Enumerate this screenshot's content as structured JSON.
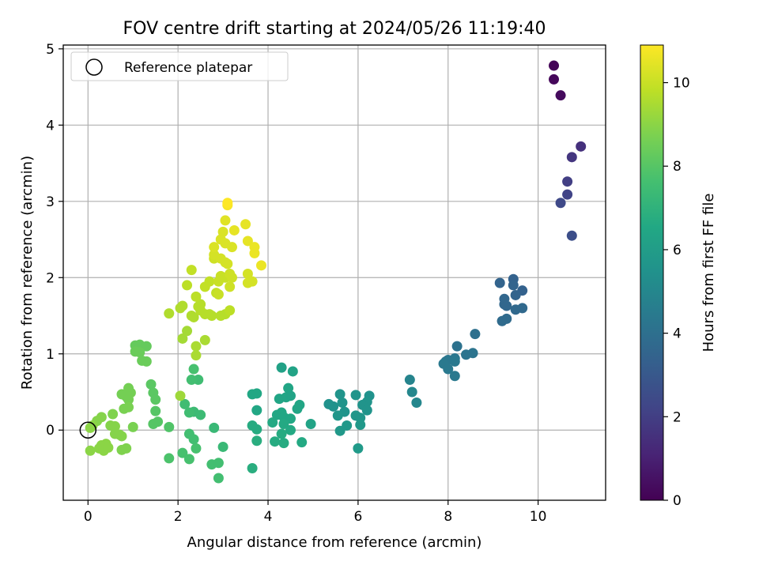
{
  "chart_data": {
    "type": "scatter",
    "title": "FOV centre drift starting at 2024/05/26 11:19:40",
    "xlabel": "Angular distance from reference (arcmin)",
    "ylabel": "Rotation from reference (arcmin)",
    "xlim": [
      -0.55,
      11.5
    ],
    "ylim": [
      -0.92,
      5.05
    ],
    "xticks": [
      0,
      2,
      4,
      6,
      8,
      10
    ],
    "xtick_labels": [
      "0",
      "2",
      "4",
      "6",
      "8",
      "10"
    ],
    "yticks": [
      0,
      1,
      2,
      3,
      4,
      5
    ],
    "ytick_labels": [
      "0",
      "1",
      "2",
      "3",
      "4",
      "5"
    ],
    "grid": true,
    "legend": {
      "position": "top-left",
      "entries": [
        "Reference platepar"
      ]
    },
    "reference_point": {
      "x": 0,
      "y": 0
    },
    "colorbar": {
      "label": "Hours from first FF file",
      "min": 0,
      "max": 10.9,
      "ticks": [
        0,
        2,
        4,
        6,
        8,
        10
      ],
      "tick_labels": [
        "0",
        "2",
        "4",
        "6",
        "8",
        "10"
      ],
      "colormap": "viridis"
    },
    "points": [
      [
        10.35,
        4.78,
        0.1
      ],
      [
        10.35,
        4.6,
        0.2
      ],
      [
        10.5,
        4.39,
        0.3
      ],
      [
        10.95,
        3.72,
        1.5
      ],
      [
        10.75,
        3.58,
        1.7
      ],
      [
        10.65,
        3.26,
        2.0
      ],
      [
        10.65,
        3.09,
        2.2
      ],
      [
        10.5,
        2.98,
        2.4
      ],
      [
        10.75,
        2.55,
        2.6
      ],
      [
        9.45,
        1.98,
        3.4
      ],
      [
        9.15,
        1.93,
        3.5
      ],
      [
        9.45,
        1.9,
        3.5
      ],
      [
        9.65,
        1.83,
        3.4
      ],
      [
        9.5,
        1.77,
        3.5
      ],
      [
        9.25,
        1.72,
        3.6
      ],
      [
        9.25,
        1.65,
        3.6
      ],
      [
        9.3,
        1.63,
        3.6
      ],
      [
        9.65,
        1.6,
        3.7
      ],
      [
        9.5,
        1.58,
        3.7
      ],
      [
        9.3,
        1.46,
        3.8
      ],
      [
        9.2,
        1.43,
        3.8
      ],
      [
        8.6,
        1.26,
        4.0
      ],
      [
        8.2,
        1.1,
        4.1
      ],
      [
        8.55,
        1.01,
        4.2
      ],
      [
        8.4,
        0.99,
        4.2
      ],
      [
        8.15,
        0.94,
        4.3
      ],
      [
        7.95,
        0.9,
        4.3
      ],
      [
        8.0,
        0.92,
        4.3
      ],
      [
        8.15,
        0.9,
        4.4
      ],
      [
        7.9,
        0.87,
        4.4
      ],
      [
        8.0,
        0.8,
        4.4
      ],
      [
        8.15,
        0.71,
        4.4
      ],
      [
        7.15,
        0.66,
        4.9
      ],
      [
        7.2,
        0.5,
        5.0
      ],
      [
        7.3,
        0.36,
        5.0
      ],
      [
        5.35,
        0.34,
        5.5
      ],
      [
        5.45,
        0.31,
        5.5
      ],
      [
        5.6,
        0.47,
        5.6
      ],
      [
        5.65,
        0.36,
        5.6
      ],
      [
        5.7,
        0.24,
        5.6
      ],
      [
        5.55,
        0.19,
        5.7
      ],
      [
        5.95,
        0.46,
        5.6
      ],
      [
        6.25,
        0.45,
        5.5
      ],
      [
        6.2,
        0.37,
        5.6
      ],
      [
        6.1,
        0.33,
        5.6
      ],
      [
        6.2,
        0.26,
        5.6
      ],
      [
        5.95,
        0.19,
        5.7
      ],
      [
        6.05,
        0.16,
        5.7
      ],
      [
        6.05,
        0.07,
        5.8
      ],
      [
        5.75,
        0.06,
        5.8
      ],
      [
        5.6,
        -0.01,
        5.8
      ],
      [
        6.0,
        -0.24,
        5.9
      ],
      [
        4.3,
        0.82,
        6.2
      ],
      [
        4.55,
        0.77,
        6.3
      ],
      [
        3.65,
        0.47,
        6.5
      ],
      [
        3.75,
        0.48,
        6.5
      ],
      [
        4.45,
        0.55,
        6.4
      ],
      [
        4.25,
        0.41,
        6.4
      ],
      [
        4.4,
        0.43,
        6.4
      ],
      [
        4.5,
        0.45,
        6.3
      ],
      [
        4.7,
        0.33,
        6.4
      ],
      [
        4.65,
        0.28,
        6.4
      ],
      [
        3.75,
        0.26,
        6.5
      ],
      [
        4.3,
        0.23,
        6.5
      ],
      [
        4.2,
        0.2,
        6.5
      ],
      [
        4.35,
        0.17,
        6.5
      ],
      [
        4.5,
        0.15,
        6.5
      ],
      [
        4.1,
        0.1,
        6.6
      ],
      [
        4.35,
        0.08,
        6.6
      ],
      [
        4.95,
        0.08,
        6.3
      ],
      [
        3.65,
        0.06,
        6.7
      ],
      [
        3.75,
        0.01,
        6.7
      ],
      [
        4.5,
        0.0,
        6.6
      ],
      [
        4.3,
        -0.05,
        6.7
      ],
      [
        3.75,
        -0.14,
        6.8
      ],
      [
        4.15,
        -0.15,
        6.7
      ],
      [
        4.35,
        -0.17,
        6.7
      ],
      [
        4.75,
        -0.16,
        6.6
      ],
      [
        3.65,
        -0.5,
        6.8
      ],
      [
        2.8,
        0.03,
        7.3
      ],
      [
        3.0,
        -0.22,
        7.3
      ],
      [
        2.35,
        0.24,
        7.4
      ],
      [
        2.15,
        0.34,
        7.5
      ],
      [
        2.25,
        0.23,
        7.5
      ],
      [
        2.5,
        0.2,
        7.4
      ],
      [
        2.45,
        0.66,
        7.5
      ],
      [
        2.3,
        0.66,
        7.6
      ],
      [
        2.35,
        0.8,
        7.7
      ],
      [
        2.25,
        -0.05,
        7.6
      ],
      [
        2.35,
        -0.12,
        7.6
      ],
      [
        2.4,
        -0.24,
        7.7
      ],
      [
        2.1,
        -0.3,
        7.7
      ],
      [
        2.25,
        -0.38,
        7.7
      ],
      [
        2.75,
        -0.45,
        7.6
      ],
      [
        2.9,
        -0.43,
        7.6
      ],
      [
        2.9,
        -0.63,
        7.6
      ],
      [
        1.8,
        -0.37,
        7.8
      ],
      [
        1.8,
        0.04,
        7.9
      ],
      [
        1.55,
        0.11,
        8.0
      ],
      [
        1.45,
        0.08,
        8.0
      ],
      [
        1.5,
        0.25,
        8.0
      ],
      [
        1.45,
        0.49,
        8.1
      ],
      [
        1.4,
        0.6,
        8.1
      ],
      [
        1.5,
        0.4,
        8.1
      ],
      [
        1.05,
        1.11,
        8.3
      ],
      [
        1.15,
        1.12,
        8.3
      ],
      [
        1.3,
        1.1,
        8.3
      ],
      [
        1.05,
        1.03,
        8.4
      ],
      [
        1.15,
        1.02,
        8.4
      ],
      [
        1.2,
        0.91,
        8.4
      ],
      [
        1.3,
        0.9,
        8.4
      ],
      [
        0.9,
        0.55,
        8.6
      ],
      [
        0.95,
        0.49,
        8.6
      ],
      [
        0.85,
        0.44,
        8.6
      ],
      [
        0.75,
        0.47,
        8.6
      ],
      [
        0.9,
        0.4,
        8.6
      ],
      [
        0.8,
        0.28,
        8.7
      ],
      [
        0.9,
        0.3,
        8.7
      ],
      [
        1.0,
        0.04,
        8.7
      ],
      [
        0.55,
        0.21,
        8.8
      ],
      [
        0.3,
        0.17,
        8.9
      ],
      [
        0.2,
        0.12,
        8.9
      ],
      [
        0.1,
        0.06,
        9.0
      ],
      [
        0.05,
        0.03,
        9.0
      ],
      [
        0.5,
        0.06,
        8.9
      ],
      [
        0.6,
        0.05,
        8.9
      ],
      [
        0.7,
        -0.06,
        8.9
      ],
      [
        0.75,
        -0.08,
        8.9
      ],
      [
        0.6,
        -0.05,
        8.9
      ],
      [
        0.85,
        -0.24,
        8.8
      ],
      [
        0.75,
        -0.26,
        8.8
      ],
      [
        0.05,
        -0.27,
        9.0
      ],
      [
        0.25,
        -0.24,
        9.0
      ],
      [
        0.3,
        -0.2,
        9.0
      ],
      [
        0.4,
        -0.18,
        9.0
      ],
      [
        0.35,
        -0.27,
        9.0
      ],
      [
        0.45,
        -0.23,
        9.0
      ],
      [
        2.05,
        0.45,
        9.3
      ],
      [
        2.1,
        1.2,
        9.4
      ],
      [
        2.2,
        1.3,
        9.4
      ],
      [
        2.4,
        1.1,
        9.5
      ],
      [
        2.4,
        0.98,
        9.5
      ],
      [
        2.6,
        1.18,
        9.5
      ],
      [
        1.8,
        1.53,
        9.6
      ],
      [
        2.05,
        1.6,
        9.6
      ],
      [
        2.1,
        1.63,
        9.6
      ],
      [
        2.3,
        1.5,
        9.6
      ],
      [
        2.35,
        1.48,
        9.6
      ],
      [
        2.5,
        1.65,
        9.7
      ],
      [
        2.5,
        1.57,
        9.7
      ],
      [
        2.45,
        1.62,
        9.7
      ],
      [
        2.6,
        1.52,
        9.7
      ],
      [
        2.7,
        1.52,
        9.7
      ],
      [
        2.75,
        1.5,
        9.7
      ],
      [
        2.95,
        1.5,
        9.7
      ],
      [
        3.05,
        1.52,
        9.7
      ],
      [
        3.15,
        1.57,
        9.8
      ],
      [
        2.4,
        1.75,
        9.8
      ],
      [
        2.2,
        1.9,
        9.8
      ],
      [
        2.3,
        2.1,
        9.9
      ],
      [
        2.6,
        1.88,
        9.9
      ],
      [
        2.7,
        1.95,
        9.9
      ],
      [
        2.85,
        1.8,
        9.9
      ],
      [
        2.9,
        1.95,
        10.0
      ],
      [
        2.9,
        1.78,
        10.0
      ],
      [
        2.95,
        2.02,
        10.0
      ],
      [
        3.05,
        2.0,
        10.0
      ],
      [
        3.15,
        1.88,
        10.1
      ],
      [
        3.15,
        2.05,
        10.1
      ],
      [
        3.2,
        2.0,
        10.1
      ],
      [
        3.55,
        2.05,
        10.2
      ],
      [
        3.55,
        1.93,
        10.2
      ],
      [
        3.65,
        1.95,
        10.2
      ],
      [
        2.8,
        2.25,
        10.1
      ],
      [
        2.8,
        2.3,
        10.2
      ],
      [
        2.95,
        2.25,
        10.2
      ],
      [
        3.05,
        2.2,
        10.2
      ],
      [
        3.1,
        2.18,
        10.2
      ],
      [
        2.8,
        2.4,
        10.3
      ],
      [
        2.95,
        2.5,
        10.3
      ],
      [
        3.0,
        2.6,
        10.3
      ],
      [
        3.05,
        2.45,
        10.3
      ],
      [
        3.2,
        2.4,
        10.3
      ],
      [
        3.05,
        2.75,
        10.4
      ],
      [
        3.25,
        2.62,
        10.5
      ],
      [
        3.5,
        2.7,
        10.5
      ],
      [
        3.55,
        2.48,
        10.5
      ],
      [
        3.7,
        2.4,
        10.6
      ],
      [
        3.7,
        2.32,
        10.6
      ],
      [
        3.85,
        2.16,
        10.6
      ],
      [
        3.1,
        2.95,
        10.8
      ],
      [
        3.1,
        2.98,
        10.9
      ]
    ]
  }
}
